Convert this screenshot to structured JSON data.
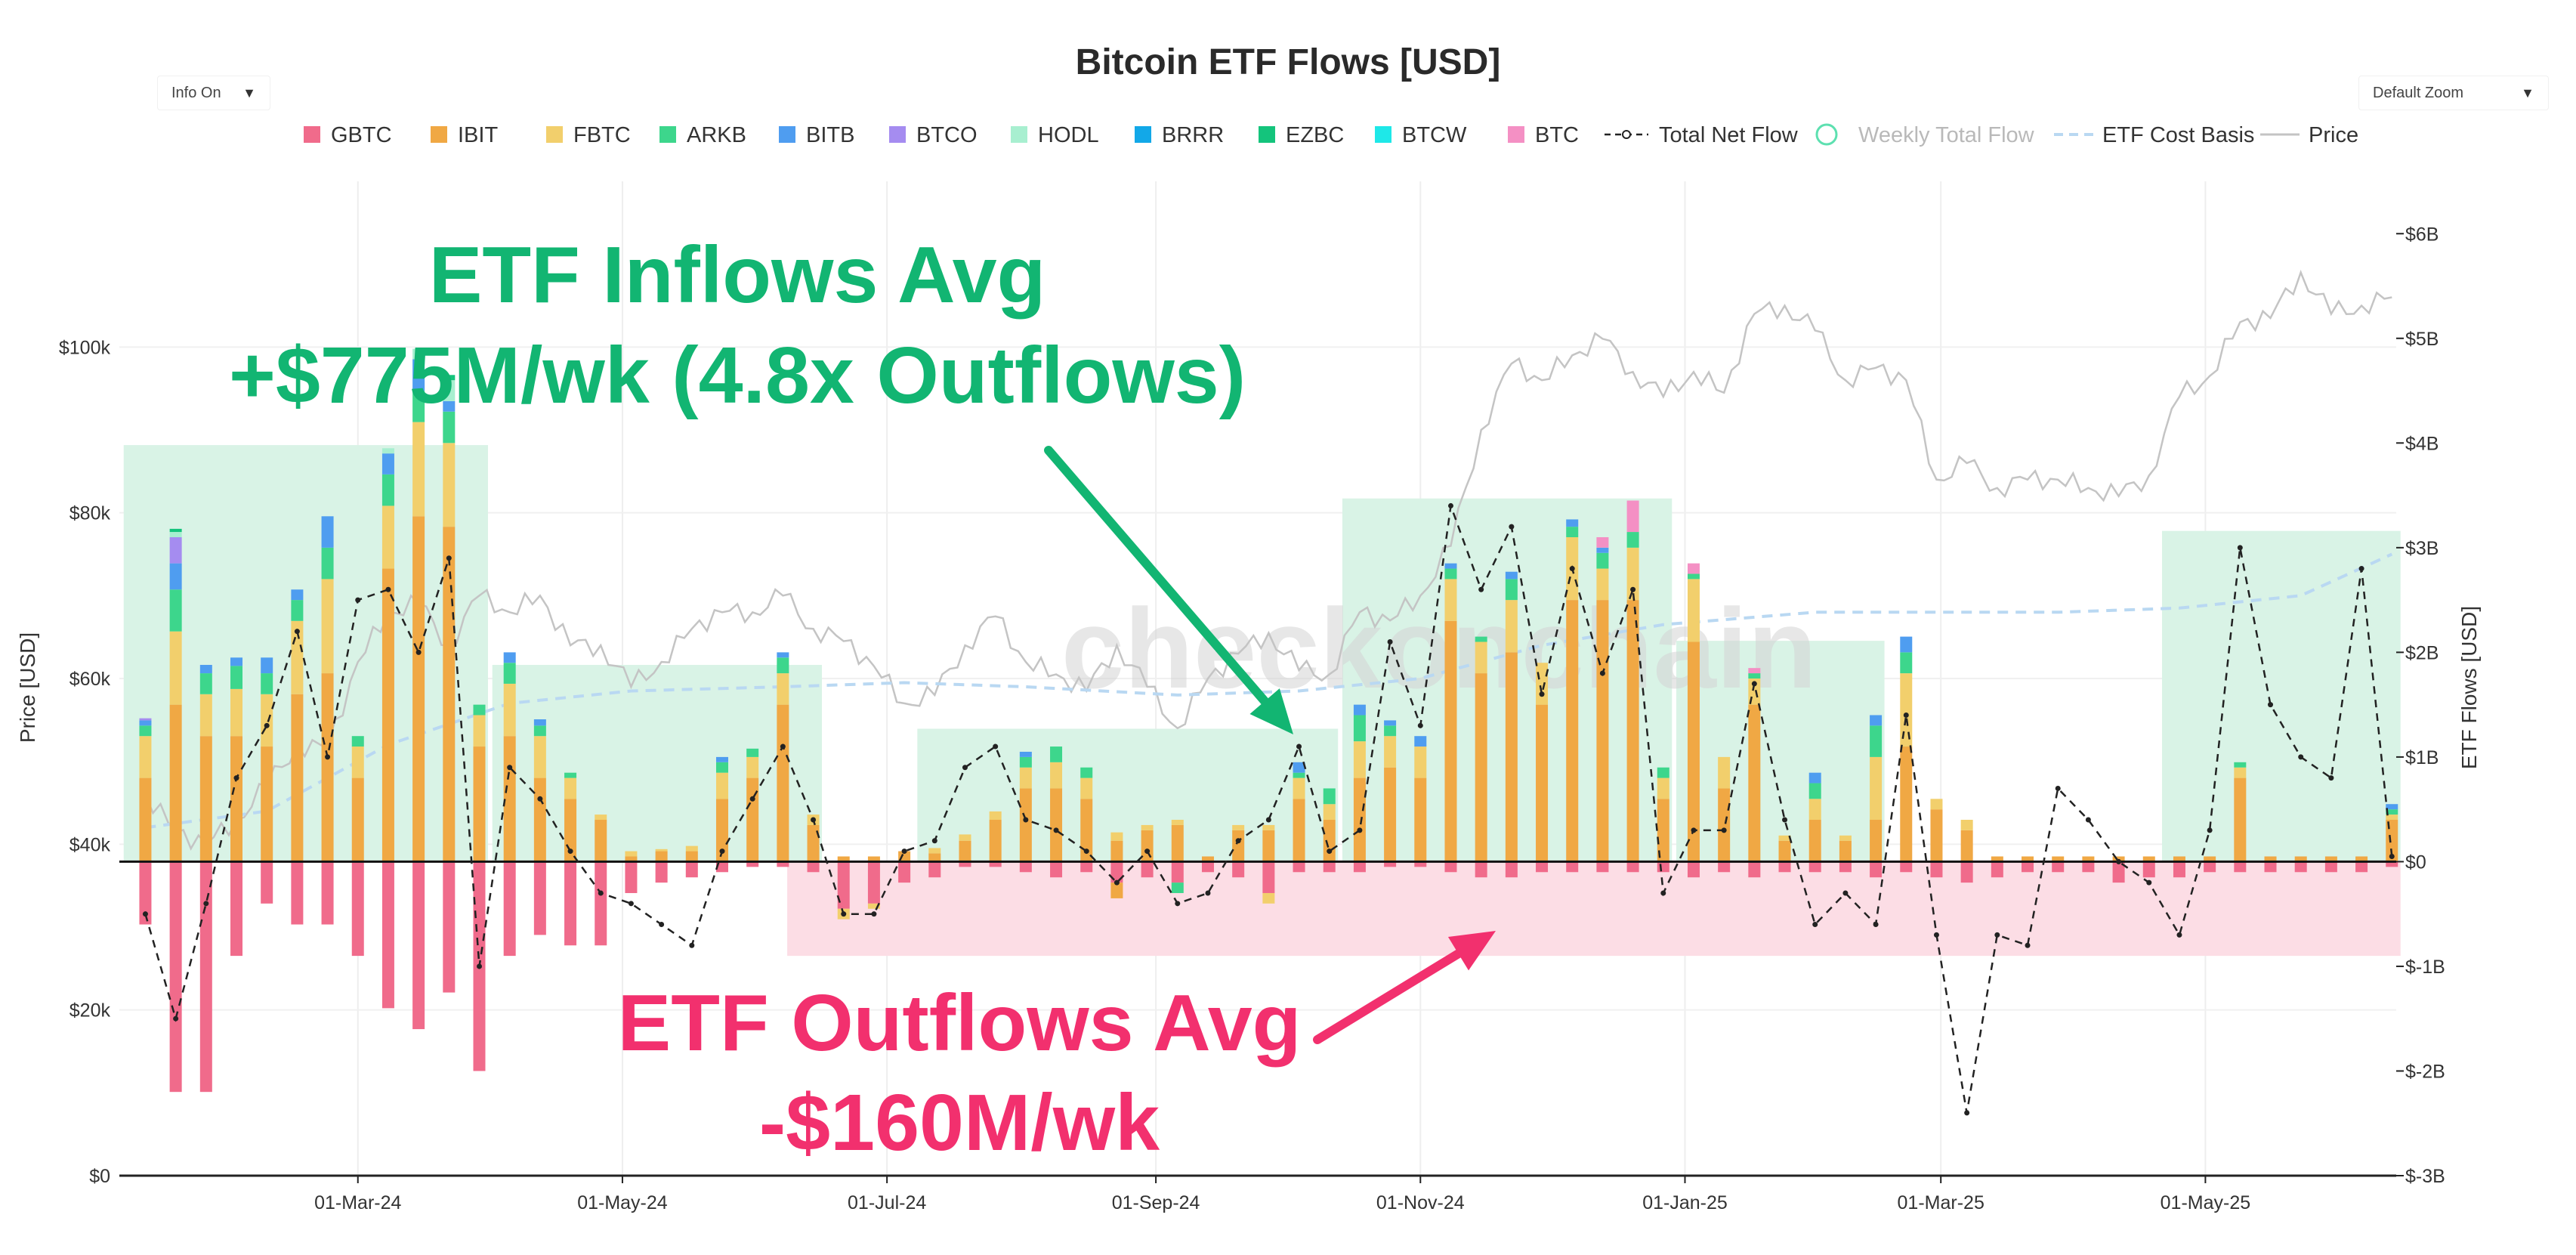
{
  "controls": {
    "info_label": "Info On",
    "zoom_label": "Default Zoom"
  },
  "colors": {
    "GBTC": "#f06b8b",
    "IBIT": "#f0a844",
    "FBTC": "#f2cf6c",
    "ARKB": "#3dd68c",
    "BITB": "#4f9df0",
    "BTCO": "#a58cf0",
    "HODL": "#a8efd0",
    "BRRR": "#12a8e8",
    "EZBC": "#14c47c",
    "BTCW": "#1ee8e8",
    "BTC": "#f490c4",
    "net_flow": "#222222",
    "weekly_total": "#5de0b0",
    "cost_basis": "#b9d8f2",
    "price": "#c4c4c4",
    "inflow_box": "#d9f3e6",
    "outflow_box": "#fcdde5",
    "inflow_text": "#12b572",
    "outflow_text": "#f2306e"
  },
  "annotations": {
    "inflow_line1": "ETF Inflows Avg",
    "inflow_line2": "+$775M/wk (4.8x Outflows)",
    "outflow_line1": "ETF Outflows Avg",
    "outflow_line2": "-$160M/wk",
    "watermark": "checkonchain"
  },
  "chart_data": {
    "type": "bar",
    "title": "Bitcoin ETF Flows [USD]",
    "ylabel_left": "Price [USD]",
    "ylabel_right": "ETF Flows [USD]",
    "x_ticks": [
      "01-Mar-24",
      "01-May-24",
      "01-Jul-24",
      "01-Sep-24",
      "01-Nov-24",
      "01-Jan-25",
      "01-Mar-25",
      "01-May-25"
    ],
    "x_tick_dates": [
      "2024-03-01",
      "2024-05-01",
      "2024-07-01",
      "2024-09-01",
      "2024-11-01",
      "2025-01-01",
      "2025-03-01",
      "2025-05-01"
    ],
    "x_range": [
      "2024-01-06",
      "2025-06-14"
    ],
    "y_left_ticks": [
      "$0",
      "$20k",
      "$40k",
      "$60k",
      "$80k",
      "$100k"
    ],
    "y_left_range": [
      0,
      120000
    ],
    "y_right_ticks": [
      "$-3B",
      "$-2B",
      "$-1B",
      "$0",
      "$1B",
      "$2B",
      "$3B",
      "$4B",
      "$5B",
      "$6B"
    ],
    "y_right_range": [
      -3,
      6.5
    ],
    "y_right_unit": "USD billions",
    "legend": [
      "GBTC",
      "IBIT",
      "FBTC",
      "ARKB",
      "BITB",
      "BTCO",
      "HODL",
      "BRRR",
      "EZBC",
      "BTCW",
      "BTC",
      "Total Net Flow",
      "Weekly Total Flow",
      "ETF Cost Basis",
      "Price"
    ],
    "legend_position": "top-center",
    "grid": true,
    "weeks": [
      "2024-01-12",
      "2024-01-19",
      "2024-01-26",
      "2024-02-02",
      "2024-02-09",
      "2024-02-16",
      "2024-02-23",
      "2024-03-01",
      "2024-03-08",
      "2024-03-15",
      "2024-03-22",
      "2024-03-29",
      "2024-04-05",
      "2024-04-12",
      "2024-04-19",
      "2024-04-26",
      "2024-05-03",
      "2024-05-10",
      "2024-05-17",
      "2024-05-24",
      "2024-05-31",
      "2024-06-07",
      "2024-06-14",
      "2024-06-21",
      "2024-06-28",
      "2024-07-05",
      "2024-07-12",
      "2024-07-19",
      "2024-07-26",
      "2024-08-02",
      "2024-08-09",
      "2024-08-16",
      "2024-08-23",
      "2024-08-30",
      "2024-09-06",
      "2024-09-13",
      "2024-09-20",
      "2024-09-27",
      "2024-10-04",
      "2024-10-11",
      "2024-10-18",
      "2024-10-25",
      "2024-11-01",
      "2024-11-08",
      "2024-11-15",
      "2024-11-22",
      "2024-11-29",
      "2024-12-06",
      "2024-12-13",
      "2024-12-20",
      "2024-12-27",
      "2025-01-03",
      "2025-01-10",
      "2025-01-17",
      "2025-01-24",
      "2025-01-31",
      "2025-02-07",
      "2025-02-14",
      "2025-02-21",
      "2025-02-28",
      "2025-03-07",
      "2025-03-14",
      "2025-03-21",
      "2025-03-28",
      "2025-04-04",
      "2025-04-11",
      "2025-04-18",
      "2025-04-25",
      "2025-05-02",
      "2025-05-09",
      "2025-05-16",
      "2025-05-23",
      "2025-05-30",
      "2025-06-06",
      "2025-06-13"
    ],
    "inflows": [
      {
        "IBIT": 0.8,
        "FBTC": 0.4,
        "ARKB": 0.1,
        "BITB": 0.05,
        "BTCO": 0.02
      },
      {
        "IBIT": 1.5,
        "FBTC": 0.7,
        "ARKB": 0.4,
        "BITB": 0.25,
        "BTCO": 0.25,
        "HODL": 0.05,
        "EZBC": 0.03
      },
      {
        "IBIT": 1.2,
        "FBTC": 0.4,
        "ARKB": 0.2,
        "BITB": 0.08
      },
      {
        "IBIT": 1.2,
        "FBTC": 0.45,
        "ARKB": 0.22,
        "BITB": 0.08
      },
      {
        "IBIT": 1.1,
        "FBTC": 0.5,
        "ARKB": 0.2,
        "BITB": 0.15
      },
      {
        "IBIT": 1.6,
        "FBTC": 0.7,
        "ARKB": 0.2,
        "BITB": 0.1
      },
      {
        "IBIT": 1.8,
        "FBTC": 0.9,
        "ARKB": 0.3,
        "BITB": 0.3
      },
      {
        "IBIT": 0.8,
        "FBTC": 0.3,
        "ARKB": 0.1
      },
      {
        "IBIT": 2.8,
        "FBTC": 0.6,
        "ARKB": 0.3,
        "BITB": 0.2,
        "HODL": 0.05
      },
      {
        "IBIT": 3.3,
        "FBTC": 0.9,
        "ARKB": 0.3,
        "BITB": 0.3,
        "HODL": 0.1
      },
      {
        "IBIT": 3.2,
        "FBTC": 0.8,
        "ARKB": 0.3,
        "BITB": 0.1,
        "HODL": 0.2,
        "EZBC": 0.05
      },
      {
        "IBIT": 1.1,
        "FBTC": 0.3,
        "ARKB": 0.1
      },
      {
        "IBIT": 1.2,
        "FBTC": 0.5,
        "ARKB": 0.2,
        "BITB": 0.1
      },
      {
        "IBIT": 0.8,
        "FBTC": 0.4,
        "ARKB": 0.1,
        "BITB": 0.06
      },
      {
        "IBIT": 0.6,
        "FBTC": 0.2,
        "ARKB": 0.05
      },
      {
        "IBIT": 0.4,
        "FBTC": 0.05
      },
      {
        "IBIT": 0.05,
        "FBTC": 0.05
      },
      {
        "IBIT": 0.1,
        "FBTC": 0.02
      },
      {
        "IBIT": 0.1,
        "FBTC": 0.05
      },
      {
        "IBIT": 0.6,
        "FBTC": 0.25,
        "ARKB": 0.1,
        "BITB": 0.05
      },
      {
        "IBIT": 0.8,
        "FBTC": 0.2,
        "ARKB": 0.08
      },
      {
        "IBIT": 1.5,
        "FBTC": 0.3,
        "ARKB": 0.15,
        "BITB": 0.05
      },
      {
        "IBIT": 0.35,
        "FBTC": 0.1
      },
      {
        "IBIT": 0.05
      },
      {
        "IBIT": 0.05
      },
      {
        "IBIT": 0.1
      },
      {
        "IBIT": 0.08,
        "FBTC": 0.05
      },
      {
        "IBIT": 0.2,
        "FBTC": 0.06
      },
      {
        "IBIT": 0.4,
        "FBTC": 0.08
      },
      {
        "IBIT": 0.7,
        "FBTC": 0.2,
        "ARKB": 0.1,
        "BITB": 0.05
      },
      {
        "IBIT": 0.7,
        "FBTC": 0.25,
        "ARKB": 0.15
      },
      {
        "IBIT": 0.6,
        "FBTC": 0.2,
        "ARKB": 0.1
      },
      {
        "IBIT": 0.2,
        "FBTC": 0.08
      },
      {
        "IBIT": 0.3,
        "FBTC": 0.05
      },
      {
        "IBIT": 0.35,
        "FBTC": 0.05
      },
      {
        "IBIT": 0.05
      },
      {
        "IBIT": 0.3,
        "FBTC": 0.05
      },
      {
        "IBIT": 0.3,
        "FBTC": 0.05
      },
      {
        "IBIT": 0.6,
        "FBTC": 0.2,
        "BITB": 0.1,
        "ARKB": 0.05
      },
      {
        "IBIT": 0.4,
        "FBTC": 0.15,
        "ARKB": 0.15
      },
      {
        "IBIT": 0.8,
        "FBTC": 0.35,
        "ARKB": 0.25,
        "BITB": 0.1
      },
      {
        "IBIT": 0.9,
        "FBTC": 0.3,
        "ARKB": 0.1,
        "BITB": 0.05
      },
      {
        "IBIT": 0.8,
        "FBTC": 0.3,
        "BITB": 0.1
      },
      {
        "IBIT": 2.3,
        "FBTC": 0.4,
        "ARKB": 0.1,
        "BITB": 0.05
      },
      {
        "IBIT": 1.8,
        "FBTC": 0.3,
        "ARKB": 0.05
      },
      {
        "IBIT": 2.0,
        "FBTC": 0.5,
        "ARKB": 0.2,
        "BITB": 0.07
      },
      {
        "IBIT": 1.5,
        "FBTC": 0.4
      },
      {
        "IBIT": 2.5,
        "FBTC": 0.6,
        "ARKB": 0.1,
        "BITB": 0.07
      },
      {
        "IBIT": 2.5,
        "FBTC": 0.3,
        "ARKB": 0.15,
        "BITB": 0.05,
        "BTC": 0.1
      },
      {
        "IBIT": 2.5,
        "FBTC": 0.5,
        "ARKB": 0.15,
        "BTC": 0.3
      },
      {
        "IBIT": 0.6,
        "FBTC": 0.2,
        "ARKB": 0.1
      },
      {
        "IBIT": 2.1,
        "FBTC": 0.6,
        "ARKB": 0.05,
        "BTC": 0.1
      },
      {
        "IBIT": 0.7,
        "FBTC": 0.3
      },
      {
        "IBIT": 1.5,
        "FBTC": 0.25,
        "ARKB": 0.05,
        "BTC": 0.05
      },
      {
        "IBIT": 0.2,
        "FBTC": 0.05
      },
      {
        "IBIT": 0.4,
        "FBTC": 0.2,
        "ARKB": 0.15,
        "BITB": 0.1
      },
      {
        "IBIT": 0.2,
        "FBTC": 0.05
      },
      {
        "IBIT": 0.4,
        "FBTC": 0.6,
        "ARKB": 0.3,
        "BITB": 0.1
      },
      {
        "IBIT": 1.1,
        "FBTC": 0.7,
        "ARKB": 0.2,
        "BITB": 0.15
      },
      {
        "IBIT": 0.5,
        "FBTC": 0.1
      },
      {
        "IBIT": 0.3,
        "FBTC": 0.1
      },
      {
        "IBIT": 0.05
      },
      {
        "IBIT": 0.05
      },
      {
        "IBIT": 0.05
      },
      {
        "IBIT": 0.05
      },
      {
        "IBIT": 0.05
      },
      {
        "IBIT": 0.05
      },
      {
        "IBIT": 0.05
      },
      {
        "IBIT": 0.05
      },
      {
        "IBIT": 0.8,
        "FBTC": 0.1,
        "ARKB": 0.05
      },
      {
        "IBIT": 0.05
      },
      {
        "IBIT": 0.05
      },
      {
        "IBIT": 0.05
      },
      {
        "IBIT": 0.05
      },
      {
        "IBIT": 0.4,
        "FBTC": 0.05,
        "ARKB": 0.05,
        "BITB": 0.05
      }
    ],
    "outflows": [
      {
        "GBTC": -0.6
      },
      {
        "GBTC": -2.2
      },
      {
        "GBTC": -2.2
      },
      {
        "GBTC": -0.9
      },
      {
        "GBTC": -0.4
      },
      {
        "GBTC": -0.6
      },
      {
        "GBTC": -0.6
      },
      {
        "GBTC": -0.9
      },
      {
        "GBTC": -1.4
      },
      {
        "GBTC": -1.6
      },
      {
        "GBTC": -1.25
      },
      {
        "GBTC": -2.0
      },
      {
        "GBTC": -0.9
      },
      {
        "GBTC": -0.7
      },
      {
        "GBTC": -0.8
      },
      {
        "GBTC": -0.8
      },
      {
        "GBTC": -0.3
      },
      {
        "GBTC": -0.2
      },
      {
        "GBTC": -0.15
      },
      {
        "GBTC": -0.1
      },
      {
        "GBTC": -0.05
      },
      {
        "GBTC": -0.05
      },
      {
        "GBTC": -0.1
      },
      {
        "GBTC": -0.45,
        "FBTC": -0.1
      },
      {
        "GBTC": -0.4,
        "FBTC": -0.05
      },
      {
        "GBTC": -0.2
      },
      {
        "GBTC": -0.15
      },
      {
        "GBTC": -0.05
      },
      {
        "GBTC": -0.05
      },
      {
        "GBTC": -0.1
      },
      {
        "GBTC": -0.15
      },
      {
        "GBTC": -0.1
      },
      {
        "GBTC": -0.2,
        "IBIT": -0.15
      },
      {
        "GBTC": -0.15
      },
      {
        "GBTC": -0.2,
        "ARKB": -0.1
      },
      {
        "GBTC": -0.1
      },
      {
        "GBTC": -0.15
      },
      {
        "GBTC": -0.3,
        "FBTC": -0.1
      },
      {
        "GBTC": -0.1
      },
      {
        "GBTC": -0.1
      },
      {
        "GBTC": -0.1
      },
      {
        "GBTC": -0.05
      },
      {
        "GBTC": -0.05
      },
      {
        "GBTC": -0.1
      },
      {
        "GBTC": -0.15
      },
      {
        "GBTC": -0.15
      },
      {
        "GBTC": -0.1
      },
      {
        "GBTC": -0.1
      },
      {
        "GBTC": -0.1
      },
      {
        "GBTC": -0.1
      },
      {
        "GBTC": -0.1
      },
      {
        "GBTC": -0.15
      },
      {
        "GBTC": -0.1
      },
      {
        "GBTC": -0.15
      },
      {
        "GBTC": -0.1
      },
      {
        "GBTC": -0.1
      },
      {
        "GBTC": -0.1
      },
      {
        "GBTC": -0.15
      },
      {
        "GBTC": -0.1
      },
      {
        "GBTC": -0.15
      },
      {
        "GBTC": -0.2
      },
      {
        "GBTC": -0.15
      },
      {
        "GBTC": -0.1
      },
      {
        "GBTC": -0.1
      },
      {
        "GBTC": -0.1
      },
      {
        "GBTC": -0.2
      },
      {
        "GBTC": -0.15
      },
      {
        "GBTC": -0.15
      },
      {
        "GBTC": -0.1
      },
      {
        "GBTC": -0.1
      },
      {
        "GBTC": -0.1
      },
      {
        "GBTC": -0.1
      },
      {
        "GBTC": -0.1
      },
      {
        "GBTC": -0.1
      },
      {
        "GBTC": -0.05
      }
    ],
    "net_flow": [
      -0.5,
      -1.5,
      -0.4,
      0.8,
      1.3,
      2.2,
      1.0,
      2.5,
      2.6,
      2.0,
      2.9,
      -1.0,
      0.9,
      0.6,
      0.1,
      -0.3,
      -0.4,
      -0.6,
      -0.8,
      0.1,
      0.6,
      1.1,
      0.4,
      -0.5,
      -0.5,
      0.1,
      0.2,
      0.9,
      1.1,
      0.4,
      0.3,
      0.1,
      -0.2,
      0.1,
      -0.4,
      -0.3,
      0.2,
      0.4,
      1.1,
      0.1,
      0.3,
      2.1,
      1.3,
      3.4,
      2.6,
      3.2,
      1.6,
      2.8,
      1.8,
      2.6,
      -0.3,
      0.3,
      0.3,
      1.7,
      0.4,
      -0.6,
      -0.3,
      -0.6,
      1.4,
      -0.7,
      -2.4,
      -0.7,
      -0.8,
      0.7,
      0.4,
      0.0,
      -0.2,
      -0.7,
      0.3,
      3.0,
      1.5,
      1.0,
      0.8,
      2.8,
      0.05
    ],
    "price_weekly": [
      [
        "2024-01-12",
        46000
      ],
      [
        "2024-01-19",
        41500
      ],
      [
        "2024-01-26",
        40000
      ],
      [
        "2024-02-02",
        43000
      ],
      [
        "2024-02-09",
        47000
      ],
      [
        "2024-02-16",
        52000
      ],
      [
        "2024-02-23",
        51500
      ],
      [
        "2024-03-01",
        62000
      ],
      [
        "2024-03-08",
        68000
      ],
      [
        "2024-03-15",
        69000
      ],
      [
        "2024-03-22",
        64000
      ],
      [
        "2024-03-29",
        70000
      ],
      [
        "2024-04-05",
        68000
      ],
      [
        "2024-04-12",
        70000
      ],
      [
        "2024-04-19",
        64000
      ],
      [
        "2024-04-26",
        64000
      ],
      [
        "2024-05-03",
        59000
      ],
      [
        "2024-05-10",
        62000
      ],
      [
        "2024-05-17",
        66000
      ],
      [
        "2024-05-24",
        68000
      ],
      [
        "2024-05-31",
        68000
      ],
      [
        "2024-06-07",
        70000
      ],
      [
        "2024-06-14",
        66000
      ],
      [
        "2024-06-21",
        64500
      ],
      [
        "2024-06-28",
        61500
      ],
      [
        "2024-07-05",
        57000
      ],
      [
        "2024-07-12",
        58000
      ],
      [
        "2024-07-19",
        64000
      ],
      [
        "2024-07-26",
        67500
      ],
      [
        "2024-08-02",
        62000
      ],
      [
        "2024-08-09",
        60500
      ],
      [
        "2024-08-16",
        58500
      ],
      [
        "2024-08-23",
        64000
      ],
      [
        "2024-08-30",
        59000
      ],
      [
        "2024-09-06",
        54000
      ],
      [
        "2024-09-13",
        60000
      ],
      [
        "2024-09-20",
        63000
      ],
      [
        "2024-09-27",
        65500
      ],
      [
        "2024-10-04",
        61000
      ],
      [
        "2024-10-11",
        60500
      ],
      [
        "2024-10-18",
        68000
      ],
      [
        "2024-10-25",
        67000
      ],
      [
        "2024-11-01",
        70000
      ],
      [
        "2024-11-08",
        76000
      ],
      [
        "2024-11-15",
        90000
      ],
      [
        "2024-11-22",
        98000
      ],
      [
        "2024-11-29",
        96000
      ],
      [
        "2024-12-06",
        99000
      ],
      [
        "2024-12-13",
        101000
      ],
      [
        "2024-12-20",
        97000
      ],
      [
        "2024-12-27",
        94000
      ],
      [
        "2025-01-03",
        97000
      ],
      [
        "2025-01-10",
        94500
      ],
      [
        "2025-01-17",
        104000
      ],
      [
        "2025-01-24",
        105000
      ],
      [
        "2025-01-31",
        102000
      ],
      [
        "2025-02-07",
        96000
      ],
      [
        "2025-02-14",
        97500
      ],
      [
        "2025-02-21",
        96000
      ],
      [
        "2025-02-28",
        84000
      ],
      [
        "2025-03-07",
        86000
      ],
      [
        "2025-03-14",
        83000
      ],
      [
        "2025-03-21",
        84000
      ],
      [
        "2025-03-28",
        84000
      ],
      [
        "2025-04-04",
        83000
      ],
      [
        "2025-04-11",
        82000
      ],
      [
        "2025-04-18",
        84500
      ],
      [
        "2025-04-25",
        94000
      ],
      [
        "2025-05-02",
        96500
      ],
      [
        "2025-05-09",
        103000
      ],
      [
        "2025-05-16",
        103500
      ],
      [
        "2025-05-23",
        109000
      ],
      [
        "2025-05-30",
        104000
      ],
      [
        "2025-06-06",
        105000
      ],
      [
        "2025-06-13",
        106000
      ]
    ],
    "cost_basis": [
      [
        "2024-01-12",
        42000
      ],
      [
        "2024-02-09",
        44000
      ],
      [
        "2024-03-08",
        52000
      ],
      [
        "2024-04-05",
        57000
      ],
      [
        "2024-05-03",
        58500
      ],
      [
        "2024-06-07",
        59000
      ],
      [
        "2024-07-05",
        59500
      ],
      [
        "2024-08-02",
        59000
      ],
      [
        "2024-09-06",
        58000
      ],
      [
        "2024-10-04",
        58500
      ],
      [
        "2024-11-01",
        60000
      ],
      [
        "2024-11-29",
        64000
      ],
      [
        "2024-12-27",
        66500
      ],
      [
        "2025-01-31",
        68000
      ],
      [
        "2025-02-28",
        68000
      ],
      [
        "2025-03-28",
        68000
      ],
      [
        "2025-04-25",
        68500
      ],
      [
        "2025-05-23",
        70000
      ],
      [
        "2025-06-13",
        75000
      ]
    ],
    "highlight_boxes": [
      {
        "kind": "inflow",
        "start": "2024-01-07",
        "end": "2024-03-31",
        "top": 3.98
      },
      {
        "kind": "inflow",
        "start": "2024-04-01",
        "end": "2024-06-16",
        "top": 1.88
      },
      {
        "kind": "inflow",
        "start": "2024-07-08",
        "end": "2024-10-13",
        "top": 1.27
      },
      {
        "kind": "inflow",
        "start": "2024-10-14",
        "end": "2024-12-29",
        "top": 3.47
      },
      {
        "kind": "inflow",
        "start": "2024-12-30",
        "end": "2025-02-16",
        "top": 2.11
      },
      {
        "kind": "inflow",
        "start": "2025-04-21",
        "end": "2025-06-15",
        "top": 3.16
      },
      {
        "kind": "outflow",
        "start": "2024-06-08",
        "end": "2025-06-15",
        "bottom": -0.9
      }
    ]
  }
}
